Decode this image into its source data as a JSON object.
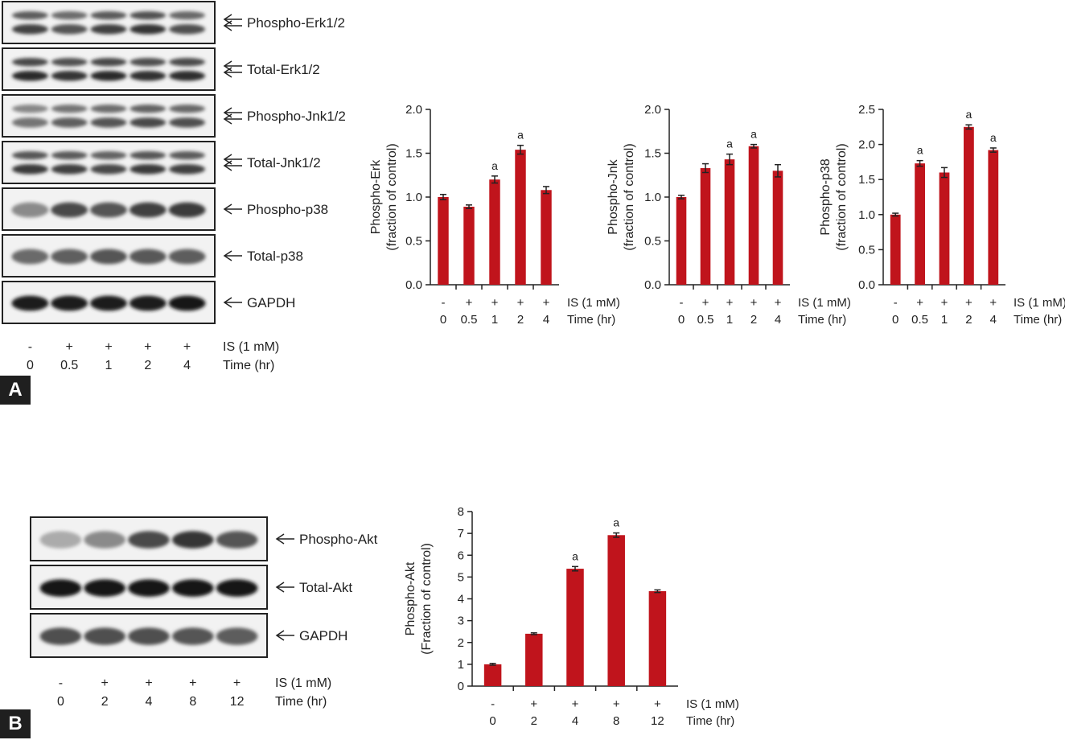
{
  "panelA": {
    "label": "A",
    "blot": {
      "rows": [
        {
          "label": "Phospho-Erk1/2",
          "arrow": "double-arrow-icon",
          "bands": 2,
          "intensity": [
            0.78,
            0.7,
            0.8,
            0.85,
            0.72
          ]
        },
        {
          "label": "Total-Erk1/2",
          "arrow": "double-arrow-icon",
          "bands": 2,
          "intensity": [
            0.9,
            0.85,
            0.9,
            0.86,
            0.88
          ]
        },
        {
          "label": "Phospho-Jnk1/2",
          "arrow": "double-arrow-icon",
          "bands": 2,
          "intensity": [
            0.55,
            0.65,
            0.7,
            0.75,
            0.72
          ]
        },
        {
          "label": "Total-Jnk1/2",
          "arrow": "double-arrow-icon",
          "bands": 2,
          "intensity": [
            0.82,
            0.8,
            0.75,
            0.82,
            0.8
          ]
        },
        {
          "label": "Phospho-p38",
          "arrow": "arrow-left-icon",
          "bands": 1,
          "intensity": [
            0.45,
            0.75,
            0.7,
            0.8,
            0.82
          ]
        },
        {
          "label": "Total-p38",
          "arrow": "arrow-left-icon",
          "bands": 1,
          "intensity": [
            0.6,
            0.65,
            0.7,
            0.68,
            0.66
          ]
        },
        {
          "label": "GAPDH",
          "arrow": "arrow-left-icon",
          "bands": 1,
          "intensity": [
            0.95,
            0.95,
            0.95,
            0.95,
            0.98
          ]
        }
      ],
      "lane_is": [
        "-",
        "+",
        "+",
        "+",
        "+"
      ],
      "lane_time": [
        "0",
        "0.5",
        "1",
        "2",
        "4"
      ],
      "is_label": "IS (1 mM)",
      "time_label": "Time (hr)"
    },
    "charts": [
      {
        "type": "bar",
        "ylabel": "Phospho-Erk",
        "ylabel2": "(fraction of control)",
        "ylim": [
          0,
          2.0
        ],
        "yticks": [
          "0.0",
          "0.5",
          "1.0",
          "1.5",
          "2.0"
        ],
        "categories_is": [
          "-",
          "+",
          "+",
          "+",
          "+"
        ],
        "categories_time": [
          "0",
          "0.5",
          "1",
          "2",
          "4"
        ],
        "values": [
          1.0,
          0.89,
          1.2,
          1.54,
          1.08
        ],
        "errors": [
          0.03,
          0.02,
          0.04,
          0.05,
          0.04
        ],
        "sig": [
          "",
          "",
          "a",
          "a",
          ""
        ],
        "is_label": "IS (1 mM)",
        "time_label": "Time (hr)"
      },
      {
        "type": "bar",
        "ylabel": "Phospho-Jnk",
        "ylabel2": "(fraction of control)",
        "ylim": [
          0,
          2.0
        ],
        "yticks": [
          "0.0",
          "0.5",
          "1.0",
          "1.5",
          "2.0"
        ],
        "categories_is": [
          "-",
          "+",
          "+",
          "+",
          "+"
        ],
        "categories_time": [
          "0",
          "0.5",
          "1",
          "2",
          "4"
        ],
        "values": [
          1.0,
          1.33,
          1.43,
          1.58,
          1.3
        ],
        "errors": [
          0.02,
          0.05,
          0.06,
          0.02,
          0.07
        ],
        "sig": [
          "",
          "",
          "a",
          "a",
          ""
        ],
        "is_label": "IS (1 mM)",
        "time_label": "Time (hr)"
      },
      {
        "type": "bar",
        "ylabel": "Phospho-p38",
        "ylabel2": "(fraction of control)",
        "ylim": [
          0,
          2.5
        ],
        "yticks": [
          "0.0",
          "0.5",
          "1.0",
          "1.5",
          "2.0",
          "2.5"
        ],
        "categories_is": [
          "-",
          "+",
          "+",
          "+",
          "+"
        ],
        "categories_time": [
          "0",
          "0.5",
          "1",
          "2",
          "4"
        ],
        "values": [
          1.0,
          1.73,
          1.6,
          2.25,
          1.92
        ],
        "errors": [
          0.02,
          0.04,
          0.07,
          0.03,
          0.03
        ],
        "sig": [
          "",
          "a",
          "",
          "a",
          "a"
        ],
        "is_label": "IS (1 mM)",
        "time_label": "Time (hr)"
      }
    ]
  },
  "panelB": {
    "label": "B",
    "blot": {
      "rows": [
        {
          "label": "Phospho-Akt",
          "arrow": "arrow-left-icon",
          "bands": 1,
          "intensity": [
            0.3,
            0.45,
            0.75,
            0.85,
            0.7
          ]
        },
        {
          "label": "Total-Akt",
          "arrow": "arrow-left-icon",
          "bands": 1,
          "intensity": [
            1.0,
            1.0,
            1.0,
            1.0,
            1.0
          ]
        },
        {
          "label": "GAPDH",
          "arrow": "arrow-left-icon",
          "bands": 1,
          "intensity": [
            0.72,
            0.72,
            0.72,
            0.7,
            0.66
          ]
        }
      ],
      "lane_is": [
        "-",
        "+",
        "+",
        "+",
        "+"
      ],
      "lane_time": [
        "0",
        "2",
        "4",
        "8",
        "12"
      ],
      "is_label": "IS (1 mM)",
      "time_label": "Time (hr)"
    },
    "chart": {
      "type": "bar",
      "ylabel": "Phospho-Akt",
      "ylabel2": "(Fraction of control)",
      "ylim": [
        0,
        8
      ],
      "yticks": [
        "0",
        "1",
        "2",
        "3",
        "4",
        "5",
        "6",
        "7",
        "8"
      ],
      "categories_is": [
        "-",
        "+",
        "+",
        "+",
        "+"
      ],
      "categories_time": [
        "0",
        "2",
        "4",
        "8",
        "12"
      ],
      "values": [
        1.0,
        2.4,
        5.38,
        6.92,
        4.35
      ],
      "errors": [
        0.04,
        0.04,
        0.1,
        0.1,
        0.06
      ],
      "sig": [
        "",
        "",
        "a",
        "a",
        ""
      ],
      "is_label": "IS (1 mM)",
      "time_label": "Time (hr)"
    }
  },
  "colors": {
    "bar": "#c0141c",
    "axis": "#222222",
    "blot_frame": "#222222"
  }
}
